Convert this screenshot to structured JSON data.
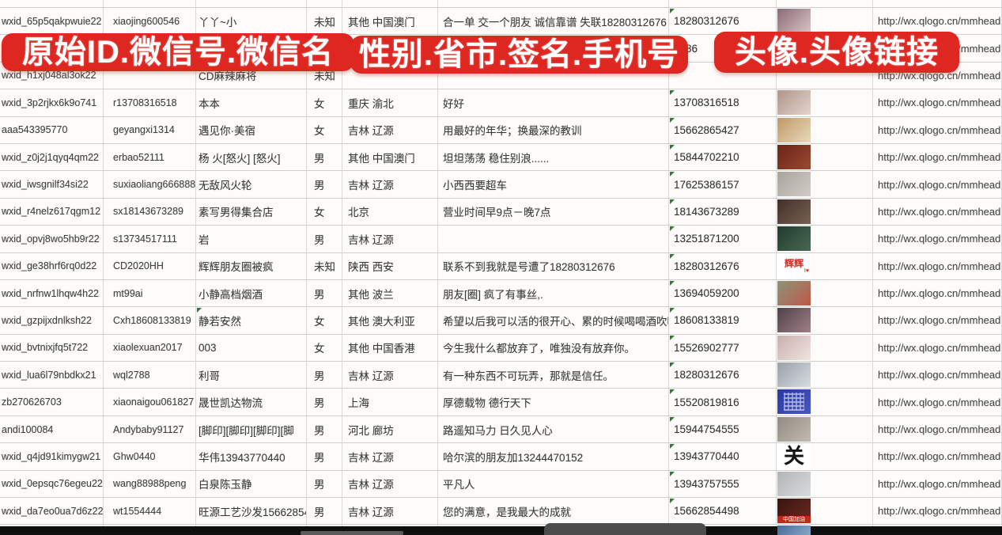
{
  "banners": {
    "color": "#de2721",
    "left": "原始ID.微信号.微信名",
    "middle": "性别.省市.签名.手机号",
    "right": "头像.头像链接"
  },
  "table": {
    "column_labels": [
      "原始ID",
      "微信号",
      "微信名",
      "性别",
      "省市",
      "签名",
      "手机号",
      "头像",
      "头像链接"
    ],
    "indicator_color": "#2e7d32",
    "rows": [
      {
        "wxid": "wxid_65p5qakpwuie22",
        "wechat_id": "xiaojing600546",
        "nickname": "丫丫~小",
        "gender": "未知",
        "region": "其他 中国澳门",
        "signature": "合一单 交一个朋友 诚信靠谱 失联18280312676",
        "phone": "18280312676",
        "phone_indicator": true,
        "avatar": {
          "kind": "photo",
          "c1": "#8a6a76",
          "c2": "#d9c5c5"
        },
        "avatar_url": "http://wx.qlogo.cn/mmhead"
      },
      {
        "wxid": "",
        "wechat_id": "",
        "nickname": "",
        "gender": "",
        "region": "",
        "signature": "",
        "phone": "5386",
        "phone_indicator": false,
        "avatar": {
          "kind": "photo",
          "c1": "#5a74a8",
          "c2": "#c9d1dd"
        },
        "avatar_url": "http://wx.qlogo.cn/mmhead"
      },
      {
        "wxid": "wxid_h1xj048al3ok22",
        "wechat_id": "",
        "nickname": "CD麻辣麻将",
        "gender": "未知",
        "region": "",
        "signature": "",
        "phone": "",
        "phone_indicator": true,
        "avatar": {
          "kind": "none"
        },
        "avatar_url": "http://wx.qlogo.cn/mmhead"
      },
      {
        "wxid": "wxid_3p2rjkx6k9o741",
        "wechat_id": "r13708316518",
        "nickname": "本本",
        "gender": "女",
        "region": "重庆 渝北",
        "signature": "好好",
        "phone": "13708316518",
        "phone_indicator": true,
        "avatar": {
          "kind": "photo",
          "c1": "#b09488",
          "c2": "#e1d5cd"
        },
        "avatar_url": "http://wx.qlogo.cn/mmhead"
      },
      {
        "wxid": "aaa543395770",
        "wechat_id": "geyangxi1314",
        "nickname": "遇见你·美宿",
        "gender": "女",
        "region": "吉林 辽源",
        "signature": "用最好的年华；换最深的教训",
        "phone": "15662865427",
        "phone_indicator": true,
        "avatar": {
          "kind": "photo",
          "c1": "#c09868",
          "c2": "#e9d9b9"
        },
        "avatar_url": "http://wx.qlogo.cn/mmhead"
      },
      {
        "wxid": "wxid_z0j2j1qyq4qm22",
        "wechat_id": "erbao52111",
        "nickname": "杨 火[怒火] [怒火]",
        "gender": "男",
        "region": "其他 中国澳门",
        "signature": "坦坦荡荡 稳住别浪......",
        "phone": "15844702210",
        "phone_indicator": true,
        "avatar": {
          "kind": "photo",
          "c1": "#6a2418",
          "c2": "#9a4a30"
        },
        "avatar_url": "http://wx.qlogo.cn/mmhead"
      },
      {
        "wxid": "wxid_iwsgnilf34si22",
        "wechat_id": "suxiaoliang666888",
        "nickname": "无敌风火轮",
        "gender": "男",
        "region": "吉林 辽源",
        "signature": "小西西要超车",
        "phone": "17625386157",
        "phone_indicator": true,
        "avatar": {
          "kind": "photo",
          "c1": "#a8a49c",
          "c2": "#d1cdc5"
        },
        "avatar_url": "http://wx.qlogo.cn/mmhead"
      },
      {
        "wxid": "wxid_r4nelz617qgm12",
        "wechat_id": "sx18143673289",
        "nickname": "素写男得集合店",
        "gender": "女",
        "region": "北京",
        "signature": "营业时间早9点－晚7点",
        "phone": "18143673289",
        "phone_indicator": true,
        "avatar": {
          "kind": "photo",
          "c1": "#40302a",
          "c2": "#786050"
        },
        "avatar_url": "http://wx.qlogo.cn/mmhead"
      },
      {
        "wxid": "wxid_opvj8wo5hb9r22",
        "wechat_id": "s13734517111",
        "nickname": "岩",
        "gender": "男",
        "region": "吉林 辽源",
        "signature": "",
        "phone": "13251871200",
        "phone_indicator": true,
        "avatar": {
          "kind": "photo",
          "c1": "#1e3c2e",
          "c2": "#486852"
        },
        "avatar_url": "http://wx.qlogo.cn/mmhead"
      },
      {
        "wxid": "wxid_ge38hrf6rq0d22",
        "wechat_id": "CD2020HH",
        "nickname": "辉辉朋友圈被疯",
        "gender": "未知",
        "region": "陕西 西安",
        "signature": "联系不到我就是号遭了18280312676",
        "phone": "18280312676",
        "phone_indicator": true,
        "avatar": {
          "kind": "label",
          "bg": "#ffffff",
          "text": "辉辉",
          "color": "#e03028",
          "size": 12,
          "subtext": "I♥"
        },
        "avatar_url": "http://wx.qlogo.cn/mmhead"
      },
      {
        "wxid": "wxid_nrfnw1lhqw4h22",
        "wechat_id": "mt99ai",
        "nickname": "小静高档烟酒",
        "gender": "男",
        "region": "其他 波兰",
        "signature": "朋友[圈] 疯了有事丝,.",
        "phone": "13694059200",
        "phone_indicator": true,
        "avatar": {
          "kind": "photo",
          "c1": "#8a9478",
          "c2": "#c05848"
        },
        "avatar_url": "http://wx.qlogo.cn/mmhead"
      },
      {
        "wxid": "wxid_gzpijxdnlksh22",
        "wechat_id": "Cxh18608133819",
        "nickname": "静若安然",
        "gender": "女",
        "region": "其他 澳大利亚",
        "signature": "希望以后我可以活的很开心、累的时候喝喝酒吹吹[",
        "phone": "18608133819",
        "phone_indicator": true,
        "name_indicator": true,
        "avatar": {
          "kind": "photo",
          "c1": "#504048",
          "c2": "#a08088"
        },
        "avatar_url": "http://wx.qlogo.cn/mmhead"
      },
      {
        "wxid": "wxid_bvtnixjfq5t722",
        "wechat_id": "xiaolexuan2017",
        "nickname": "003",
        "gender": "女",
        "region": "其他 中国香港",
        "signature": "今生我什么都放弃了，唯独没有放弃你。",
        "phone": "15526902777",
        "phone_indicator": true,
        "avatar": {
          "kind": "photo",
          "c1": "#c8b0ac",
          "c2": "#f0e4e0"
        },
        "avatar_url": "http://wx.qlogo.cn/mmhead"
      },
      {
        "wxid": "wxid_lua6l79nbdkx21",
        "wechat_id": "wql2788",
        "nickname": "利哥",
        "gender": "男",
        "region": "吉林 辽源",
        "signature": "有一种东西不可玩弄，那就是信任。",
        "phone": "18280312676",
        "phone_indicator": true,
        "avatar": {
          "kind": "photo",
          "c1": "#98a0a8",
          "c2": "#d8dce0"
        },
        "avatar_url": "http://wx.qlogo.cn/mmhead"
      },
      {
        "wxid": "zb270626703",
        "wechat_id": "xiaonaigou061827",
        "nickname": "晟世凯达物流",
        "gender": "男",
        "region": "上海",
        "signature": "厚德载物 德行天下",
        "phone": "15520819816",
        "phone_indicator": true,
        "avatar": {
          "kind": "qr",
          "c1": "#2838a0",
          "c2": "#4858c0"
        },
        "avatar_url": "http://wx.qlogo.cn/mmhead"
      },
      {
        "wxid": "andi100084",
        "wechat_id": "Andybaby91127",
        "nickname": "[脚印][脚印][脚印][脚",
        "gender": "男",
        "region": "河北 廊坊",
        "signature": "路遥知马力 日久见人心",
        "phone": "15944754555",
        "phone_indicator": true,
        "avatar": {
          "kind": "photo",
          "c1": "#908a80",
          "c2": "#c1bbb1"
        },
        "avatar_url": "http://wx.qlogo.cn/mmhead"
      },
      {
        "wxid": "wxid_q4jd91kimygw21",
        "wechat_id": "Ghw0440",
        "nickname": "华伟13943770440",
        "gender": "男",
        "region": "吉林 辽源",
        "signature": "哈尔滨的朋友加13244470152",
        "phone": "13943770440",
        "phone_indicator": true,
        "avatar": {
          "kind": "label",
          "bg": "#ffffff",
          "text": "关",
          "color": "#151515",
          "size": 26,
          "serif": true
        },
        "avatar_url": "http://wx.qlogo.cn/mmhead"
      },
      {
        "wxid": "wxid_0epsqc76egeu22",
        "wechat_id": "wang88988peng",
        "nickname": "白泉陈玉静",
        "gender": "男",
        "region": "吉林 辽源",
        "signature": "平凡人",
        "phone": "13943757555",
        "phone_indicator": true,
        "avatar": {
          "kind": "photo",
          "c1": "#b0b4b8",
          "c2": "#d8dcdd"
        },
        "avatar_url": "http://wx.qlogo.cn/mmhead"
      },
      {
        "wxid": "wxid_da7eo0ua7d6z22",
        "wechat_id": "wt1554444",
        "nickname": "旺源工艺沙发15662854",
        "gender": "男",
        "region": "吉林 辽源",
        "signature": "您的满意，是我最大的成就",
        "phone": "15662854498",
        "phone_indicator": true,
        "avatar": {
          "kind": "band",
          "c1": "#3a1410",
          "c2": "#6a2a20",
          "band_color": "#c02818",
          "band_text": "中国加油"
        },
        "avatar_url": "http://wx.qlogo.cn/mmhead,"
      },
      {
        "partial": true,
        "wxid": "",
        "wechat_id": "",
        "nickname": "",
        "gender": "",
        "region": "",
        "signature": "",
        "phone": "",
        "phone_indicator": false,
        "avatar": {
          "kind": "photo",
          "c1": "#4a6a9a",
          "c2": "#88a8c8"
        },
        "avatar_url": ""
      }
    ]
  }
}
